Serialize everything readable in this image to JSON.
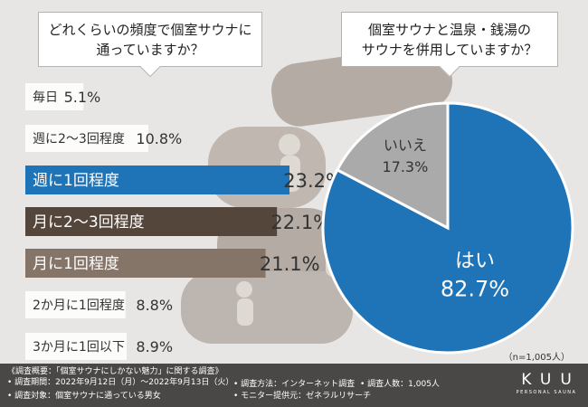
{
  "questions": {
    "left": [
      "どれくらいの頻度で個室サウナに",
      "通っていますか？"
    ],
    "right": [
      "個室サウナと温泉・銭湯の",
      "サウナを併用していますか？"
    ]
  },
  "chart_data": [
    {
      "type": "bar",
      "orientation": "horizontal",
      "title": "どれくらいの頻度で個室サウナに通っていますか？",
      "categories": [
        "毎日",
        "週に2〜3回程度",
        "週に1回程度",
        "月に2〜3回程度",
        "月に1回程度",
        "2か月に1回程度",
        "3か月に1回以下"
      ],
      "values": [
        5.1,
        10.8,
        23.2,
        22.1,
        21.1,
        8.8,
        8.9
      ],
      "value_labels": [
        "5.1%",
        "10.8%",
        "23.2%",
        "22.1%",
        "21.1%",
        "8.8%",
        "8.9%"
      ],
      "colors": [
        "#ffffff",
        "#ffffff",
        "#1f73b7",
        "#55463c",
        "#857569",
        "#ffffff",
        "#ffffff"
      ],
      "label_colors": [
        "#333333",
        "#333333",
        "#ffffff",
        "#ffffff",
        "#ffffff",
        "#333333",
        "#333333"
      ],
      "xlim": [
        0,
        23.2
      ]
    },
    {
      "type": "pie",
      "title": "個室サウナと温泉・銭湯のサウナを併用していますか？",
      "labels": [
        "はい",
        "いいえ"
      ],
      "values": [
        82.7,
        17.3
      ],
      "value_labels": [
        "82.7%",
        "17.3%"
      ],
      "colors": [
        "#1f73b7",
        "#aaaaaa"
      ]
    }
  ],
  "sample_note": "（n=1,005人）",
  "footer": {
    "title": "《調査概要：「個室サウナにしかない魅力」に関する調査》",
    "period": "• 調査期間：2022年9月12日（月）〜2022年9月13日（火）",
    "target": "• 調査対象：個室サウナに通っている男女",
    "method": "• 調査方法：インターネット調査",
    "monitor": "• モニター提供元：ゼネラルリサーチ",
    "count": "• 調査人数：1,005人"
  },
  "logo": {
    "main": "KUU",
    "sub": "PERSONAL SAUNA"
  }
}
